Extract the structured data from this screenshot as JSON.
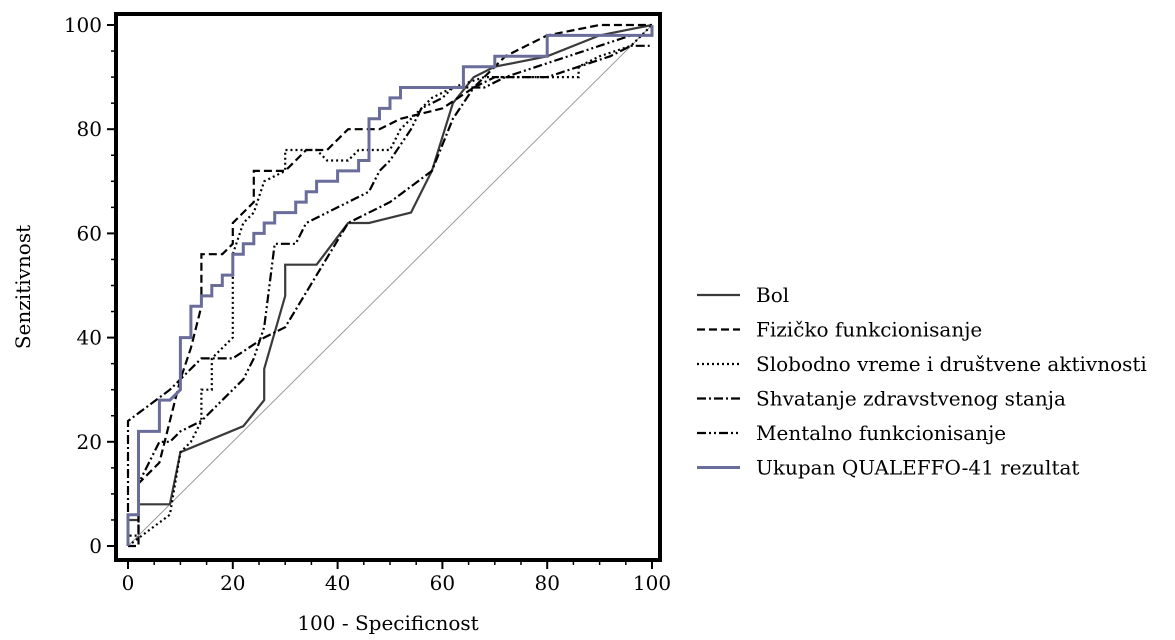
{
  "chart_data": {
    "type": "line",
    "title": "",
    "xlabel": "100 - Specificnost",
    "ylabel": "Senzitivnost",
    "xlim": [
      0,
      100
    ],
    "ylim": [
      0,
      100
    ],
    "x_ticks": [
      0,
      20,
      40,
      60,
      80,
      100
    ],
    "y_ticks": [
      0,
      20,
      40,
      60,
      80,
      100
    ],
    "grid": false,
    "legend_position": "right",
    "reference_line": {
      "from": [
        0,
        0
      ],
      "to": [
        100,
        100
      ],
      "style": "thin gray"
    },
    "series": [
      {
        "name": "Bol",
        "style": "solid",
        "color": "#3a3a3a",
        "points": [
          [
            0,
            0
          ],
          [
            0,
            5
          ],
          [
            2,
            5
          ],
          [
            2,
            8
          ],
          [
            8,
            8
          ],
          [
            10,
            18
          ],
          [
            22,
            23
          ],
          [
            26,
            28
          ],
          [
            26,
            34
          ],
          [
            30,
            48
          ],
          [
            30,
            54
          ],
          [
            36,
            54
          ],
          [
            42,
            62
          ],
          [
            46,
            62
          ],
          [
            54,
            64
          ],
          [
            58,
            72
          ],
          [
            62,
            85
          ],
          [
            66,
            90
          ],
          [
            70,
            92
          ],
          [
            80,
            94
          ],
          [
            90,
            98
          ],
          [
            100,
            100
          ]
        ]
      },
      {
        "name": "Fizičko funkcionisanje",
        "style": "dashed",
        "color": "#000000",
        "points": [
          [
            0,
            0
          ],
          [
            2,
            0
          ],
          [
            2,
            12
          ],
          [
            6,
            16
          ],
          [
            10,
            32
          ],
          [
            12,
            38
          ],
          [
            14,
            46
          ],
          [
            14,
            56
          ],
          [
            18,
            56
          ],
          [
            20,
            58
          ],
          [
            20,
            62
          ],
          [
            24,
            66
          ],
          [
            24,
            72
          ],
          [
            30,
            72
          ],
          [
            34,
            76
          ],
          [
            38,
            76
          ],
          [
            42,
            80
          ],
          [
            48,
            80
          ],
          [
            52,
            82
          ],
          [
            60,
            84
          ],
          [
            66,
            88
          ],
          [
            70,
            92
          ],
          [
            72,
            94
          ],
          [
            76,
            96
          ],
          [
            80,
            98
          ],
          [
            90,
            100
          ],
          [
            100,
            100
          ]
        ]
      },
      {
        "name": "Slobodno vreme i društvene aktivnosti",
        "style": "dotted",
        "color": "#000000",
        "points": [
          [
            0,
            0
          ],
          [
            8,
            6
          ],
          [
            10,
            18
          ],
          [
            12,
            20
          ],
          [
            14,
            24
          ],
          [
            14,
            30
          ],
          [
            16,
            30
          ],
          [
            16,
            36
          ],
          [
            20,
            40
          ],
          [
            20,
            56
          ],
          [
            22,
            62
          ],
          [
            24,
            64
          ],
          [
            26,
            70
          ],
          [
            30,
            72
          ],
          [
            30,
            76
          ],
          [
            36,
            76
          ],
          [
            38,
            74
          ],
          [
            42,
            74
          ],
          [
            44,
            76
          ],
          [
            50,
            76
          ],
          [
            52,
            80
          ],
          [
            54,
            82
          ],
          [
            58,
            86
          ],
          [
            62,
            88
          ],
          [
            68,
            90
          ],
          [
            74,
            90
          ],
          [
            76,
            90
          ],
          [
            80,
            90
          ],
          [
            86,
            90
          ],
          [
            86,
            92
          ],
          [
            90,
            94
          ],
          [
            96,
            96
          ],
          [
            100,
            100
          ]
        ]
      },
      {
        "name": "Shvatanje zdravstvenog stanja",
        "style": "dashdot",
        "color": "#000000",
        "points": [
          [
            0,
            0
          ],
          [
            0,
            24
          ],
          [
            8,
            30
          ],
          [
            14,
            36
          ],
          [
            20,
            36
          ],
          [
            26,
            40
          ],
          [
            30,
            42
          ],
          [
            36,
            52
          ],
          [
            42,
            62
          ],
          [
            50,
            66
          ],
          [
            58,
            72
          ],
          [
            62,
            82
          ],
          [
            66,
            88
          ],
          [
            70,
            90
          ],
          [
            80,
            90
          ],
          [
            86,
            92
          ],
          [
            92,
            94
          ],
          [
            96,
            96
          ],
          [
            100,
            96
          ]
        ]
      },
      {
        "name": "Mentalno funkcionisanje",
        "style": "dashdotdot",
        "color": "#000000",
        "points": [
          [
            0,
            0
          ],
          [
            0,
            2
          ],
          [
            2,
            2
          ],
          [
            2,
            12
          ],
          [
            4,
            16
          ],
          [
            6,
            20
          ],
          [
            8,
            20
          ],
          [
            10,
            22
          ],
          [
            14,
            24
          ],
          [
            18,
            28
          ],
          [
            20,
            30
          ],
          [
            22,
            32
          ],
          [
            24,
            36
          ],
          [
            26,
            42
          ],
          [
            28,
            58
          ],
          [
            32,
            58
          ],
          [
            34,
            62
          ],
          [
            38,
            64
          ],
          [
            42,
            66
          ],
          [
            46,
            68
          ],
          [
            48,
            72
          ],
          [
            50,
            74
          ],
          [
            54,
            80
          ],
          [
            56,
            84
          ],
          [
            60,
            86
          ],
          [
            62,
            88
          ],
          [
            68,
            88
          ],
          [
            72,
            90
          ],
          [
            78,
            92
          ],
          [
            84,
            94
          ],
          [
            90,
            96
          ],
          [
            96,
            98
          ],
          [
            100,
            98
          ]
        ]
      },
      {
        "name": "Ukupan QUALEFFO-41 rezultat",
        "style": "solid",
        "color": "#6a6c99",
        "points": [
          [
            0,
            0
          ],
          [
            0,
            6
          ],
          [
            2,
            6
          ],
          [
            2,
            22
          ],
          [
            6,
            22
          ],
          [
            6,
            28
          ],
          [
            8,
            28
          ],
          [
            10,
            30
          ],
          [
            10,
            40
          ],
          [
            12,
            40
          ],
          [
            12,
            46
          ],
          [
            14,
            46
          ],
          [
            14,
            48
          ],
          [
            16,
            48
          ],
          [
            16,
            50
          ],
          [
            18,
            50
          ],
          [
            18,
            52
          ],
          [
            20,
            52
          ],
          [
            20,
            56
          ],
          [
            22,
            56
          ],
          [
            22,
            58
          ],
          [
            24,
            58
          ],
          [
            24,
            60
          ],
          [
            26,
            60
          ],
          [
            26,
            62
          ],
          [
            28,
            62
          ],
          [
            28,
            64
          ],
          [
            32,
            64
          ],
          [
            32,
            66
          ],
          [
            34,
            66
          ],
          [
            34,
            68
          ],
          [
            36,
            68
          ],
          [
            36,
            70
          ],
          [
            40,
            70
          ],
          [
            40,
            72
          ],
          [
            44,
            72
          ],
          [
            44,
            74
          ],
          [
            46,
            74
          ],
          [
            46,
            82
          ],
          [
            48,
            82
          ],
          [
            48,
            84
          ],
          [
            50,
            84
          ],
          [
            50,
            86
          ],
          [
            52,
            86
          ],
          [
            52,
            88
          ],
          [
            62,
            88
          ],
          [
            64,
            88
          ],
          [
            64,
            92
          ],
          [
            70,
            92
          ],
          [
            70,
            94
          ],
          [
            80,
            94
          ],
          [
            80,
            98
          ],
          [
            100,
            98
          ],
          [
            100,
            100
          ]
        ]
      }
    ]
  }
}
